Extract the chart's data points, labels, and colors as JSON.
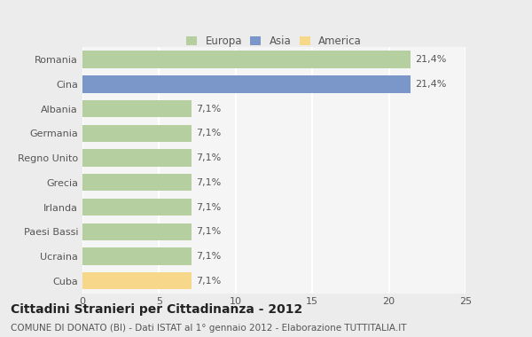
{
  "categories": [
    "Romania",
    "Cina",
    "Albania",
    "Germania",
    "Regno Unito",
    "Grecia",
    "Irlanda",
    "Paesi Bassi",
    "Ucraina",
    "Cuba"
  ],
  "values": [
    21.4,
    21.4,
    7.1,
    7.1,
    7.1,
    7.1,
    7.1,
    7.1,
    7.1,
    7.1
  ],
  "labels": [
    "21,4%",
    "21,4%",
    "7,1%",
    "7,1%",
    "7,1%",
    "7,1%",
    "7,1%",
    "7,1%",
    "7,1%",
    "7,1%"
  ],
  "colors": [
    "#b5cfa0",
    "#7b96c8",
    "#b5cfa0",
    "#b5cfa0",
    "#b5cfa0",
    "#b5cfa0",
    "#b5cfa0",
    "#b5cfa0",
    "#b5cfa0",
    "#f7d88a"
  ],
  "legend_labels": [
    "Europa",
    "Asia",
    "America"
  ],
  "legend_colors": [
    "#b5cfa0",
    "#7b96c8",
    "#f7d88a"
  ],
  "xlim": [
    0,
    25
  ],
  "xticks": [
    0,
    5,
    10,
    15,
    20,
    25
  ],
  "title": "Cittadini Stranieri per Cittadinanza - 2012",
  "subtitle": "COMUNE DI DONATO (BI) - Dati ISTAT al 1° gennaio 2012 - Elaborazione TUTTITALIA.IT",
  "background_color": "#ececec",
  "bar_background": "#f5f5f5",
  "grid_color": "#ffffff",
  "title_fontsize": 10,
  "subtitle_fontsize": 7.5,
  "label_fontsize": 8,
  "tick_fontsize": 8
}
